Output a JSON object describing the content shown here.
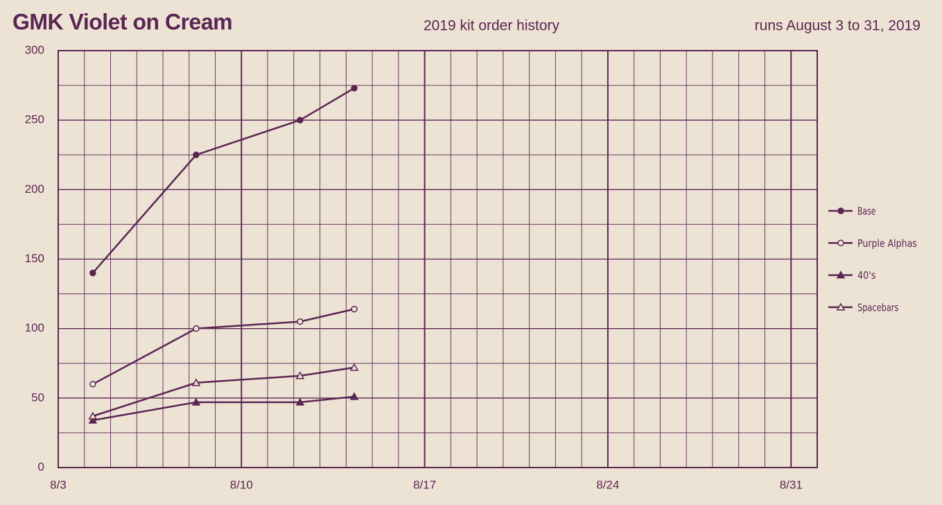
{
  "chart_data": {
    "type": "line",
    "title": "GMK Violet on Cream",
    "subtitle": "2019 kit order history",
    "annotation": "runs August 3 to 31, 2019",
    "color": "#5b2552",
    "grid": true,
    "legend": "right",
    "x": [
      4.32,
      8.27,
      12.24,
      14.31
    ],
    "xlim": [
      3,
      32
    ],
    "xticks": [
      {
        "value": 3,
        "label": "8/3"
      },
      {
        "value": 10,
        "label": "8/10"
      },
      {
        "value": 17,
        "label": "8/17"
      },
      {
        "value": 24,
        "label": "8/24"
      },
      {
        "value": 31,
        "label": "8/31"
      }
    ],
    "ylim": [
      0,
      300
    ],
    "yticks": [
      0,
      50,
      100,
      150,
      200,
      250,
      300
    ],
    "series": [
      {
        "name": "Base",
        "marker": "circle",
        "filled": true,
        "values": [
          140,
          225,
          250,
          273
        ]
      },
      {
        "name": "Purple Alphas",
        "marker": "circle",
        "filled": false,
        "values": [
          60,
          100,
          105,
          114
        ]
      },
      {
        "name": "40's",
        "marker": "triangle",
        "filled": true,
        "values": [
          34,
          47,
          47,
          51
        ]
      },
      {
        "name": "Spacebars",
        "marker": "triangle",
        "filled": false,
        "values": [
          37,
          61,
          66,
          72
        ]
      }
    ]
  }
}
